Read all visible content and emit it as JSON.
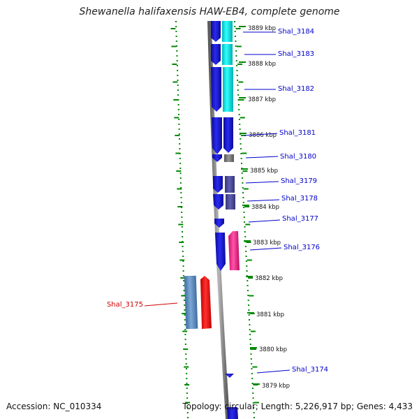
{
  "title": "Shewanella halifaxensis HAW-EB4, complete genome",
  "footer": {
    "accession": "Accession: NC_010334",
    "topology": "Topology: circular; Length: 5,226,917 bp; Genes: 4,433"
  },
  "colors": {
    "forward_cds": "#1a1adc",
    "feature_cyan": "#00e5e5",
    "feature_purple": "#4a4a9a",
    "feature_gray": "#707070",
    "feature_pink": "#ff3399",
    "feature_steelblue": "#5b8bc0",
    "feature_red": "#ff1010",
    "label_blue": "#0000cc",
    "label_red": "#cc0000",
    "tick_green": "#008800",
    "backbone_gray": "#888888"
  },
  "ticks": [
    "3889 kbp",
    "3888 kbp",
    "3887 kbp",
    "3886 kbp",
    "3885 kbp",
    "3884 kbp",
    "3883 kbp",
    "3882 kbp",
    "3881 kbp",
    "3880 kbp",
    "3879 kbp"
  ],
  "genes": [
    "Shal_3184",
    "Shal_3183",
    "Shal_3182",
    "Shal_3181",
    "Shal_3180",
    "Shal_3179",
    "Shal_3178",
    "Shal_3177",
    "Shal_3176",
    "Shal_3175",
    "Shal_3174"
  ]
}
